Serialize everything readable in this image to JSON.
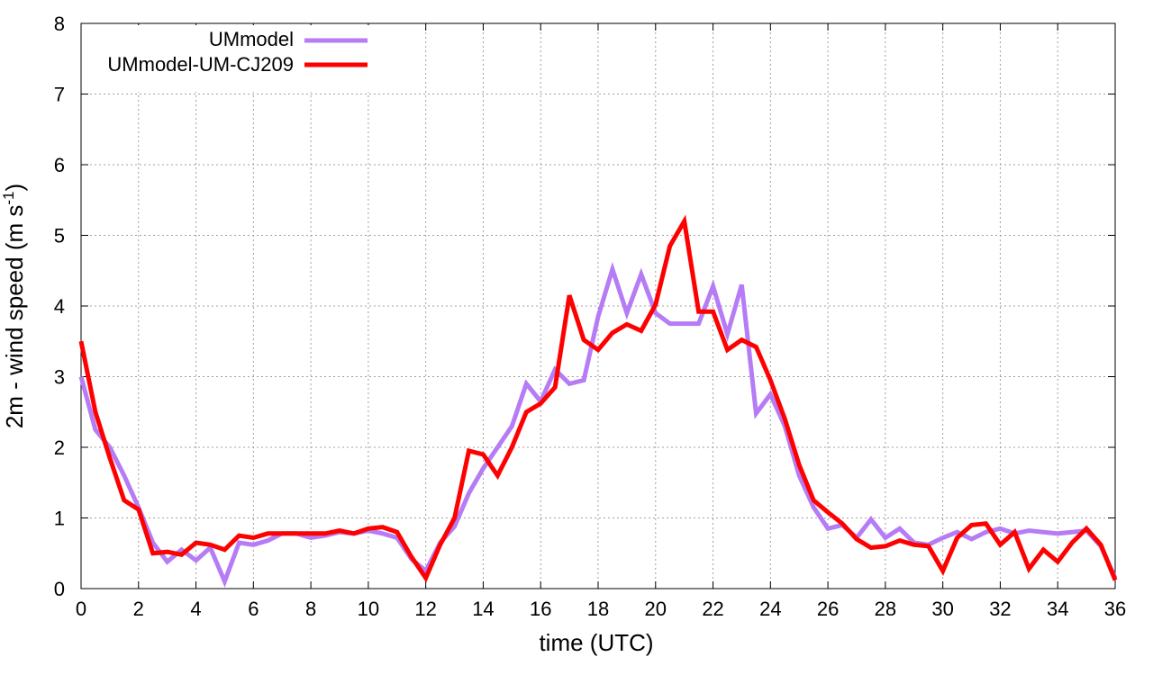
{
  "chart_data": {
    "type": "line",
    "xlabel": "time (UTC)",
    "ylabel_main": "2m - wind speed  (m s",
    "ylabel_sup": "-1",
    "ylabel_close": ")",
    "xlim": [
      0,
      36
    ],
    "ylim": [
      0,
      8
    ],
    "xticks": [
      0,
      2,
      4,
      6,
      8,
      10,
      12,
      14,
      16,
      18,
      20,
      22,
      24,
      26,
      28,
      30,
      32,
      34,
      36
    ],
    "yticks": [
      0,
      1,
      2,
      3,
      4,
      5,
      6,
      7,
      8
    ],
    "grid": true,
    "legend_position": "top-left",
    "series": [
      {
        "name": "UMmodel",
        "color": "#b57cf5",
        "x": [
          0,
          0.5,
          1,
          1.5,
          2,
          2.5,
          3,
          3.5,
          4,
          4.5,
          5,
          5.5,
          6,
          6.5,
          7,
          7.5,
          8,
          8.5,
          9,
          9.5,
          10,
          10.5,
          11,
          11.5,
          12,
          12.5,
          13,
          13.5,
          14,
          14.5,
          15,
          15.5,
          16,
          16.5,
          17,
          17.5,
          18,
          18.5,
          19,
          19.5,
          20,
          20.5,
          21,
          21.5,
          22,
          22.5,
          23,
          23.5,
          24,
          24.5,
          25,
          25.5,
          26,
          26.5,
          27,
          27.5,
          28,
          28.5,
          29,
          29.5,
          30,
          30.5,
          31,
          31.5,
          32,
          32.5,
          33,
          33.5,
          34,
          34.5,
          35,
          35.5,
          36
        ],
        "y": [
          3.0,
          2.25,
          2.0,
          1.6,
          1.15,
          0.65,
          0.38,
          0.55,
          0.4,
          0.58,
          0.1,
          0.65,
          0.62,
          0.68,
          0.78,
          0.78,
          0.72,
          0.75,
          0.8,
          0.78,
          0.82,
          0.78,
          0.72,
          0.42,
          0.25,
          0.65,
          0.88,
          1.35,
          1.7,
          2.0,
          2.3,
          2.9,
          2.65,
          3.1,
          2.9,
          2.95,
          3.85,
          4.52,
          3.9,
          4.45,
          3.9,
          3.75,
          3.75,
          3.75,
          4.28,
          3.6,
          4.3,
          2.48,
          2.75,
          2.3,
          1.6,
          1.15,
          0.85,
          0.9,
          0.72,
          0.98,
          0.72,
          0.85,
          0.65,
          0.62,
          0.72,
          0.8,
          0.7,
          0.8,
          0.85,
          0.78,
          0.82,
          0.8,
          0.78,
          0.8,
          0.82,
          0.6,
          0.15
        ]
      },
      {
        "name": "UMmodel-UM-CJ209",
        "color": "#ff0000",
        "x": [
          0,
          0.5,
          1,
          1.5,
          2,
          2.5,
          3,
          3.5,
          4,
          4.5,
          5,
          5.5,
          6,
          6.5,
          7,
          7.5,
          8,
          8.5,
          9,
          9.5,
          10,
          10.5,
          11,
          11.5,
          12,
          12.5,
          13,
          13.5,
          14,
          14.5,
          15,
          15.5,
          16,
          16.5,
          17,
          17.5,
          18,
          18.5,
          19,
          19.5,
          20,
          20.5,
          21,
          21.5,
          22,
          22.5,
          23,
          23.5,
          24,
          24.5,
          25,
          25.5,
          26,
          26.5,
          27,
          27.5,
          28,
          28.5,
          29,
          29.5,
          30,
          30.5,
          31,
          31.5,
          32,
          32.5,
          33,
          33.5,
          34,
          34.5,
          35,
          35.5,
          36
        ],
        "y": [
          3.5,
          2.5,
          1.85,
          1.25,
          1.12,
          0.5,
          0.52,
          0.48,
          0.65,
          0.62,
          0.55,
          0.75,
          0.72,
          0.78,
          0.78,
          0.78,
          0.78,
          0.78,
          0.82,
          0.78,
          0.85,
          0.87,
          0.8,
          0.45,
          0.15,
          0.62,
          1.0,
          1.95,
          1.9,
          1.6,
          2.0,
          2.5,
          2.62,
          2.85,
          4.15,
          3.52,
          3.38,
          3.62,
          3.74,
          3.65,
          4.02,
          4.85,
          5.2,
          3.92,
          3.92,
          3.38,
          3.52,
          3.42,
          2.95,
          2.4,
          1.75,
          1.25,
          1.08,
          0.92,
          0.7,
          0.58,
          0.6,
          0.68,
          0.62,
          0.6,
          0.25,
          0.72,
          0.9,
          0.92,
          0.62,
          0.8,
          0.28,
          0.55,
          0.38,
          0.65,
          0.85,
          0.62,
          0.12
        ]
      }
    ]
  }
}
